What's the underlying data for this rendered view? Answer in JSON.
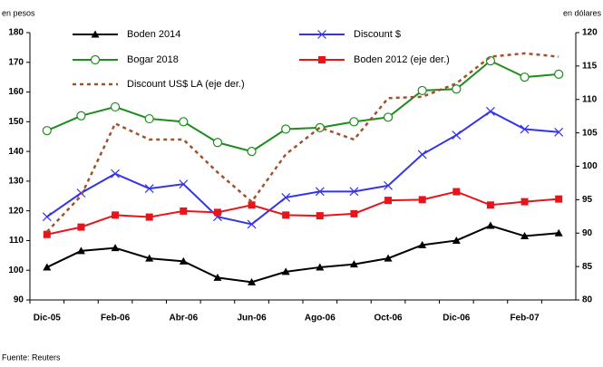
{
  "chart_data": {
    "type": "line",
    "y_label": "en pesos",
    "y2_label": "en dólares",
    "source": "Fuente: Reuters",
    "categories": [
      "Dic-05",
      null,
      "Feb-06",
      null,
      "Abr-06",
      null,
      "Jun-06",
      null,
      "Ago-06",
      null,
      "Oct-06",
      null,
      "Dic-06",
      null,
      "Feb-07",
      null
    ],
    "ylim": [
      90,
      180
    ],
    "yticks": [
      90,
      100,
      110,
      120,
      130,
      140,
      150,
      160,
      170,
      180
    ],
    "y2lim": [
      80,
      120
    ],
    "y2ticks": [
      80,
      85,
      90,
      95,
      100,
      105,
      110,
      115,
      120
    ],
    "series": [
      {
        "name": "Boden 2014",
        "color": "#000000",
        "marker": "triangle",
        "values": [
          101,
          106.5,
          107.5,
          104,
          103,
          97.5,
          96,
          99.5,
          101,
          102,
          104,
          108.5,
          110,
          115,
          111.5,
          112.5
        ]
      },
      {
        "name": "Discount $",
        "color": "#3333ee",
        "marker": "x",
        "values": [
          118,
          126,
          132.5,
          127.5,
          129,
          118,
          115.5,
          124.5,
          126.5,
          126.5,
          128.5,
          139,
          145.5,
          153.5,
          147.5,
          146.5
        ]
      },
      {
        "name": "Bogar 2018",
        "color": "#1e8c1e",
        "marker": "circle",
        "values": [
          147,
          152,
          155,
          151,
          150,
          143,
          140,
          147.5,
          148,
          150,
          151.5,
          160.5,
          161,
          170.5,
          165,
          166
        ]
      },
      {
        "name": "Boden 2012 (eje der.)",
        "color": "#e8141b",
        "marker": "square",
        "axis": "y2",
        "values": [
          89.8,
          90.9,
          92.7,
          92.4,
          93.3,
          93.1,
          94.2,
          92.7,
          92.6,
          92.9,
          94.9,
          95.0,
          96.2,
          94.2,
          94.7,
          95.1
        ]
      },
      {
        "name": "Discount US$ LA (eje der.)",
        "color": "#a0522d",
        "marker": "none",
        "dash": true,
        "axis": "y2",
        "values": [
          90.2,
          95.6,
          106.4,
          104.0,
          104.0,
          99.1,
          94.7,
          101.8,
          105.8,
          104.0,
          110.2,
          110.4,
          112.4,
          116.4,
          116.9,
          116.4
        ]
      }
    ]
  }
}
